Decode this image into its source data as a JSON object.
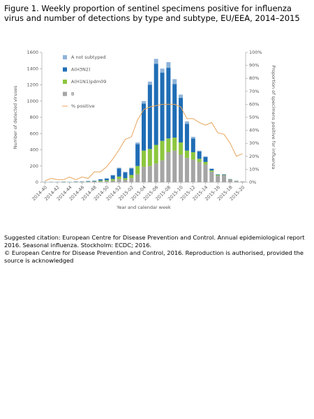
{
  "chart_data": {
    "type": "bar",
    "stacked": true,
    "title": "Figure 1. Weekly proportion of sentinel specimens positive for influenza virus and number of detections by type and subtype, EU/EEA, 2014–2015",
    "x_label": "Year and calendar week",
    "y_label": "Number of detected viruses",
    "y2_label": "Proportion of specimens positive for influenza",
    "categories": [
      "2014-40",
      null,
      "2014-42",
      null,
      "2014-44",
      null,
      "2014-46",
      null,
      "2014-48",
      null,
      "2014-50",
      null,
      "2014-52",
      null,
      "2015-02",
      null,
      "2015-04",
      null,
      "2015-06",
      null,
      "2015-08",
      null,
      "2015-10",
      null,
      "2015-12",
      null,
      "2015-14",
      null,
      "2015-16",
      null,
      "2015-18",
      null,
      "2015-20"
    ],
    "ylim": [
      0,
      1600
    ],
    "yticks": [
      0,
      200,
      400,
      600,
      800,
      1000,
      1200,
      1400,
      1600
    ],
    "y2lim": [
      0,
      100
    ],
    "y2ticks": [
      {
        "value": 0,
        "label": "0%"
      },
      {
        "value": 10,
        "label": "10%"
      },
      {
        "value": 20,
        "label": "20%"
      },
      {
        "value": 30,
        "label": "30%"
      },
      {
        "value": 40,
        "label": "40%"
      },
      {
        "value": 50,
        "label": "50%"
      },
      {
        "value": 60,
        "label": "60%"
      },
      {
        "value": 70,
        "label": "70%"
      },
      {
        "value": 80,
        "label": "80%"
      },
      {
        "value": 90,
        "label": "90%"
      },
      {
        "value": 100,
        "label": "100%"
      }
    ],
    "legend": "top-left",
    "series": [
      {
        "name": "B",
        "color": "#a5a5a5",
        "values": [
          2,
          2,
          2,
          3,
          2,
          4,
          4,
          5,
          8,
          10,
          15,
          20,
          40,
          30,
          50,
          100,
          190,
          200,
          230,
          270,
          370,
          390,
          340,
          300,
          280,
          250,
          220,
          130,
          80,
          85,
          35,
          15,
          8
        ]
      },
      {
        "name": "A(H1N1)pdm09",
        "color": "#8dc63f",
        "values": [
          1,
          1,
          1,
          2,
          1,
          2,
          2,
          3,
          4,
          10,
          10,
          20,
          30,
          20,
          40,
          100,
          200,
          210,
          230,
          240,
          170,
          160,
          150,
          90,
          90,
          40,
          30,
          15,
          10,
          5,
          3,
          2,
          1
        ]
      },
      {
        "name": "A(H3N2)",
        "color": "#1f6db5",
        "values": [
          2,
          2,
          2,
          3,
          2,
          4,
          4,
          6,
          7,
          15,
          20,
          45,
          100,
          70,
          80,
          270,
          580,
          790,
          1000,
          840,
          870,
          660,
          550,
          330,
          170,
          90,
          60,
          20,
          5,
          5,
          2,
          2,
          1
        ]
      },
      {
        "name": "A not subtyped",
        "color": "#8fb4d9",
        "values": [
          0,
          0,
          0,
          0,
          0,
          0,
          0,
          1,
          1,
          5,
          5,
          5,
          10,
          10,
          10,
          20,
          30,
          40,
          60,
          50,
          70,
          60,
          40,
          30,
          20,
          10,
          10,
          5,
          5,
          5,
          0,
          1,
          0
        ]
      },
      {
        "name": "% positive",
        "type": "line",
        "axis": "y2",
        "color": "#e8a45a",
        "values": [
          1,
          3,
          2,
          2,
          4,
          2,
          4,
          3,
          8,
          8,
          12,
          18,
          25,
          33,
          35,
          48,
          56,
          58,
          59,
          60,
          60,
          60,
          58,
          49,
          49,
          46,
          44,
          46,
          38,
          37,
          30,
          20,
          22
        ]
      }
    ]
  },
  "citation": "Suggested citation: European Centre for Disease Prevention and Control. Annual epidemiological report 2016. Seasonal influenza. Stockholm: ECDC; 2016.",
  "copyright": "© European Centre for Disease Prevention and Control, 2016. Reproduction is authorised, provided the source is acknowledged"
}
